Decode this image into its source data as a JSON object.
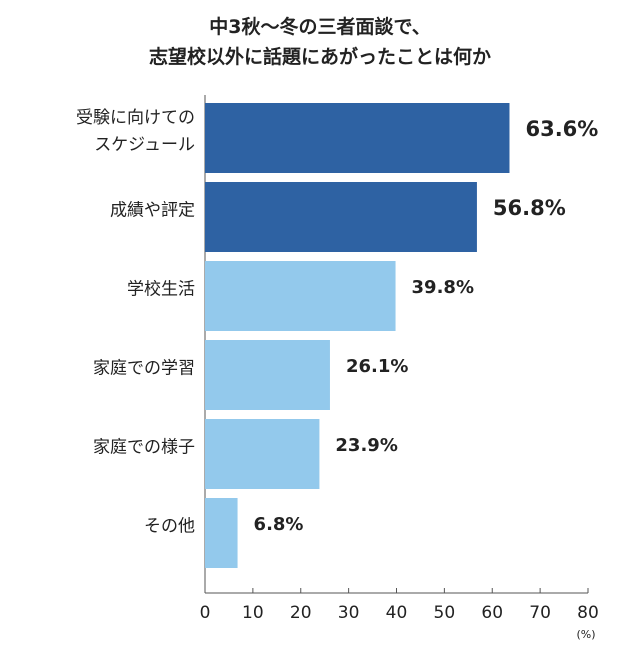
{
  "chart_data": {
    "type": "hbar",
    "title": "中3秋〜冬の三者面談で、\n志望校以外に話題にあがったことは何か",
    "categories": [
      "受験に向けての\nスケジュール",
      "成績や評定",
      "学校生活",
      "家庭での学習",
      "家庭での様子",
      "その他"
    ],
    "values": [
      63.6,
      56.8,
      39.8,
      26.1,
      23.9,
      6.8
    ],
    "value_labels": [
      "63.6%",
      "56.8%",
      "39.8%",
      "26.1%",
      "23.9%",
      "6.8%"
    ],
    "colors": [
      "#2e62a3",
      "#2e62a3",
      "#93c9ec",
      "#93c9ec",
      "#93c9ec",
      "#93c9ec"
    ],
    "xlim": [
      0,
      80
    ],
    "xticks": [
      0,
      10,
      20,
      30,
      40,
      50,
      60,
      70,
      80
    ],
    "x_label": "(%)"
  }
}
